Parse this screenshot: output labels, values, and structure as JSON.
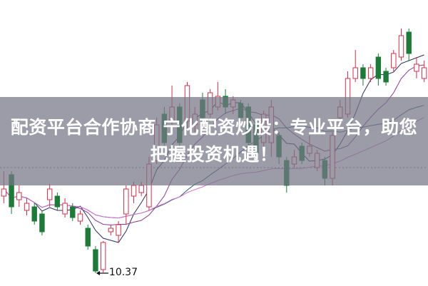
{
  "headline": {
    "line1": "配资平台合作协商 宁化配资炒股：专业平台，助您",
    "line2": "把握投资机遇！"
  },
  "chart_data": {
    "type": "candlestick",
    "title": "",
    "xlabel": "",
    "ylabel": "",
    "grid": false,
    "ohlc_order": [
      "open",
      "close",
      "high",
      "low"
    ],
    "candles": [
      [
        11.45,
        11.55,
        11.8,
        11.35
      ],
      [
        11.75,
        11.3,
        11.8,
        11.2
      ],
      [
        11.4,
        11.5,
        11.6,
        11.3
      ],
      [
        11.25,
        11.35,
        11.42,
        11.18
      ],
      [
        11.3,
        11.1,
        11.36,
        11.05
      ],
      [
        11.2,
        10.95,
        11.25,
        10.9
      ],
      [
        11.4,
        11.55,
        11.62,
        11.3
      ],
      [
        11.45,
        11.3,
        11.5,
        11.25
      ],
      [
        11.2,
        11.35,
        11.42,
        11.15
      ],
      [
        11.3,
        11.15,
        11.35,
        11.1
      ],
      [
        11.1,
        11.2,
        11.25,
        11.05
      ],
      [
        11.0,
        10.75,
        11.05,
        10.7
      ],
      [
        10.7,
        10.4,
        10.75,
        10.37
      ],
      [
        10.42,
        10.8,
        10.82,
        10.38
      ],
      [
        10.95,
        11.0,
        11.05,
        10.9
      ],
      [
        10.9,
        11.05,
        11.1,
        10.8
      ],
      [
        11.2,
        11.55,
        11.6,
        11.05
      ],
      [
        11.45,
        11.6,
        11.65,
        11.35
      ],
      [
        11.5,
        11.6,
        11.65,
        11.45
      ],
      [
        11.3,
        11.9,
        12.0,
        11.25
      ],
      [
        11.95,
        12.45,
        12.55,
        11.9
      ],
      [
        12.6,
        12.2,
        12.7,
        12.15
      ],
      [
        12.5,
        12.7,
        13.0,
        12.45
      ],
      [
        12.7,
        12.2,
        12.75,
        12.15
      ],
      [
        12.5,
        13.0,
        13.05,
        12.4
      ],
      [
        12.45,
        12.6,
        12.7,
        12.35
      ],
      [
        12.8,
        12.55,
        12.9,
        12.5
      ],
      [
        12.6,
        12.9,
        12.95,
        12.55
      ],
      [
        12.7,
        12.85,
        13.05,
        12.65
      ],
      [
        12.85,
        12.7,
        12.95,
        12.6
      ],
      [
        12.7,
        12.8,
        12.85,
        12.6
      ],
      [
        12.75,
        12.55,
        12.8,
        12.5
      ],
      [
        12.7,
        12.2,
        12.75,
        12.1
      ],
      [
        12.45,
        12.05,
        12.5,
        11.95
      ],
      [
        12.2,
        12.6,
        12.65,
        12.1
      ],
      [
        12.2,
        12.7,
        12.8,
        12.0
      ],
      [
        12.3,
        12.0,
        12.35,
        11.9
      ],
      [
        11.95,
        11.6,
        12.0,
        11.5
      ],
      [
        11.9,
        12.0,
        12.1,
        11.85
      ],
      [
        12.15,
        11.95,
        12.2,
        11.9
      ],
      [
        12.05,
        12.15,
        12.3,
        12.0
      ],
      [
        11.85,
        12.05,
        12.1,
        11.8
      ],
      [
        11.95,
        11.7,
        12.0,
        11.6
      ],
      [
        11.7,
        12.3,
        12.35,
        11.6
      ],
      [
        12.55,
        12.7,
        12.8,
        12.5
      ],
      [
        12.6,
        13.1,
        13.2,
        12.55
      ],
      [
        13.1,
        13.25,
        13.5,
        13.05
      ],
      [
        13.25,
        13.1,
        13.3,
        13.0
      ],
      [
        13.1,
        13.25,
        13.3,
        13.05
      ],
      [
        13.4,
        13.1,
        13.45,
        13.0
      ],
      [
        13.2,
        13.05,
        13.25,
        13.0
      ],
      [
        13.25,
        13.45,
        13.5,
        13.2
      ],
      [
        13.4,
        13.7,
        13.8,
        13.35
      ],
      [
        13.75,
        13.45,
        13.8,
        13.35
      ],
      [
        13.2,
        13.3,
        13.4,
        13.1
      ],
      [
        13.1,
        13.25,
        13.35,
        13.05
      ]
    ],
    "moving_averages": [
      5,
      10,
      20,
      40
    ],
    "reference_line_price": 11.85,
    "low_annotation": {
      "value": 10.37,
      "label": "10.37"
    },
    "colors": {
      "up": "#d0304a",
      "down": "#1f7a3a",
      "ma": [
        "#2a2f5a",
        "#8a3a8a",
        "#2f5f6f",
        "#d070d0"
      ],
      "ref": "#777777"
    }
  }
}
